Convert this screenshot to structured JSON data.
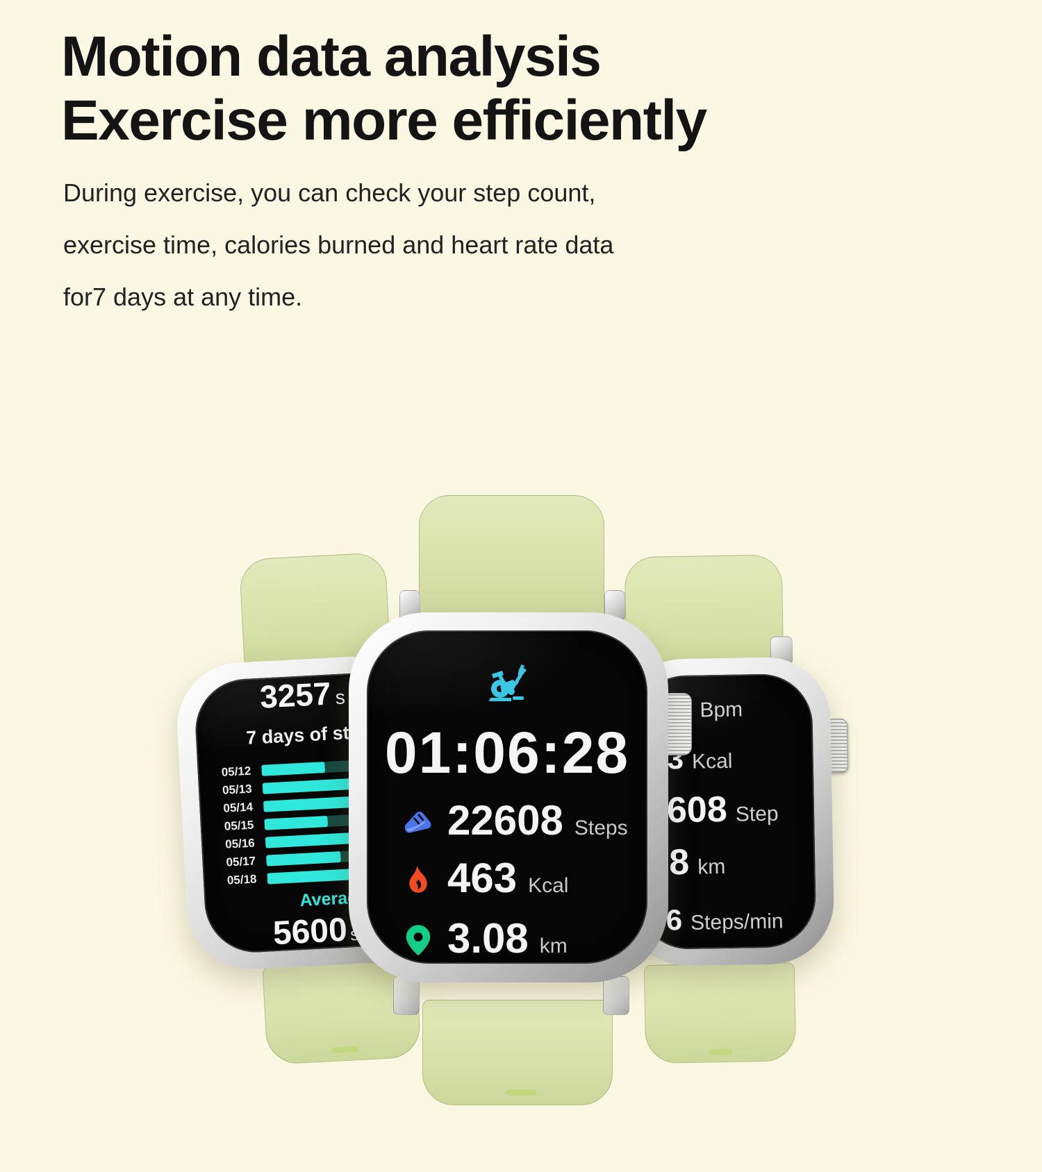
{
  "page": {
    "background": "#faf7e2"
  },
  "header": {
    "title_line1": "Motion data analysis",
    "title_line2": "Exercise more efficiently",
    "paragraph_lines": [
      "During exercise, you can check your step count,",
      "exercise time, calories burned and heart rate data",
      "for7 days at any time."
    ]
  },
  "colors": {
    "page_bg": "#faf7e2",
    "accent_cyan": "#2fe7da",
    "accent_cyan_dark": "#17483f",
    "icon_bike": "#38c6e4",
    "icon_shoe": "#4a74e9",
    "icon_flame": "#f14b24",
    "icon_pin": "#13cd86",
    "strap_green": "#d9e2ab",
    "screen_black": "#060607",
    "text_white": "#f4f4f4",
    "text_gray": "#c9c9c9"
  },
  "watch_left": {
    "top_value": "3257",
    "top_unit": "s",
    "chart_title": "7 days of st",
    "average_label": "Averag",
    "average_value": "5600",
    "average_unit": "st"
  },
  "watch_center": {
    "activity_icon": "exercise-bike-icon",
    "time": "01:06:28",
    "metrics": [
      {
        "icon": "shoe-icon",
        "value": "22608",
        "unit": "Steps"
      },
      {
        "icon": "flame-icon",
        "value": "463",
        "unit": "Kcal"
      },
      {
        "icon": "location-pin-icon",
        "value": "3.08",
        "unit": "km"
      }
    ]
  },
  "watch_right": {
    "rows": [
      {
        "value": "",
        "unit": "Bpm"
      },
      {
        "value": "3",
        "unit": "Kcal"
      },
      {
        "value": "608",
        "unit": "Step"
      },
      {
        "value": "8",
        "unit": "km"
      },
      {
        "value": "6",
        "unit": "Steps/min"
      }
    ]
  },
  "chart_data": {
    "type": "bar",
    "orientation": "horizontal",
    "title": "7 days of st",
    "categories": [
      "05/12",
      "05/13",
      "05/14",
      "05/15",
      "05/16",
      "05/17",
      "05/18"
    ],
    "values_pct_visible": [
      57,
      100,
      100,
      57,
      100,
      67,
      100
    ],
    "bar_color": "#2fe7da",
    "bar_remainder_color": "#17483f",
    "average_value_visible": "5600",
    "legend_position": "none",
    "grid": false
  }
}
